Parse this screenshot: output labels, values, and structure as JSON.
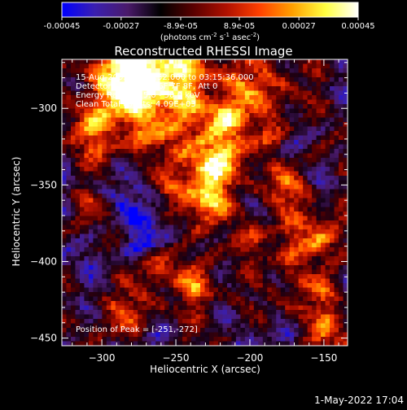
{
  "colorbar": {
    "ticks": [
      "-0.00045",
      "-0.00027",
      "-8.9e-05",
      "8.9e-05",
      "0.00027",
      "0.00045"
    ],
    "tick_values": [
      -0.00045,
      -0.00027,
      -8.9e-05,
      8.9e-05,
      0.00027,
      0.00045
    ],
    "units_main": "(photons cm",
    "units_sup1": "-2",
    "units_mid1": " s",
    "units_sup2": "-1",
    "units_mid2": " asec",
    "units_sup3": "-2",
    "units_end": ")",
    "colors": [
      "#0000ff",
      "#3a1fb0",
      "#4a1a6a",
      "#000000",
      "#5a0000",
      "#b01000",
      "#ff4000",
      "#ffa000",
      "#ffff40",
      "#ffffff"
    ]
  },
  "overlay": {
    "line1": "15-Aug-2005 03:13:52.000 to 03:15:36.000",
    "line2": "Detectors: 3F 4F 5F 6F 7F 8F, Att 0",
    "line3": "Energy Range: 25.0 - 50.0 keV",
    "line4": "Clean    Total counts: 4.09E+03",
    "peak": "Position of Peak = [-251,-272]"
  },
  "footer": {
    "timestamp": "1-May-2022 17:04"
  },
  "chart_data": {
    "type": "heatmap",
    "title": "Reconstructed RHESSI Image",
    "xlabel": "Heliocentric X (arcsec)",
    "ylabel": "Heliocentric Y (arcsec)",
    "xlim": [
      -327,
      -134
    ],
    "ylim": [
      -455,
      -268
    ],
    "x_ticks": [
      -300,
      -250,
      -200,
      -150
    ],
    "x_tick_labels": [
      "−300",
      "−250",
      "−200",
      "−150"
    ],
    "y_ticks": [
      -300,
      -350,
      -400,
      -450
    ],
    "y_tick_labels": [
      "−300",
      "−350",
      "−400",
      "−450"
    ],
    "clim": [
      -0.00045,
      0.00045
    ],
    "peak_position": [
      -251,
      -272
    ]
  }
}
